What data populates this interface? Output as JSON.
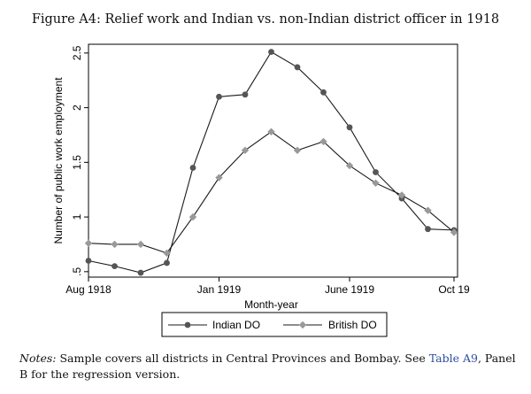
{
  "chart_data": {
    "type": "line",
    "title": "Figure A4: Relief work and Indian vs. non-Indian district officer in 1918",
    "xlabel": "Month-year",
    "ylabel": "Number of public work employment",
    "x": [
      "Aug 1918",
      "Sep 1918",
      "Oct 1918",
      "Nov 1918",
      "Dec 1918",
      "Jan 1919",
      "Feb 1919",
      "Mar 1919",
      "Apr 1919",
      "May 1919",
      "Jun 1919",
      "Jul 1919",
      "Aug 1919",
      "Sep 1919",
      "Oct 1919"
    ],
    "xticks": [
      {
        "index": 0,
        "label": "Aug 1918"
      },
      {
        "index": 5,
        "label": "Jan 1919"
      },
      {
        "index": 10,
        "label": "June 1919"
      },
      {
        "index": 14,
        "label": "Oct 19"
      }
    ],
    "ylim": [
      0.45,
      2.58
    ],
    "yticks": [
      ".5",
      "1",
      "1.5",
      "2",
      "2.5"
    ],
    "ytick_values": [
      0.5,
      1,
      1.5,
      2,
      2.5
    ],
    "grid": false,
    "legend_placement": "bottom",
    "series": [
      {
        "name": "Indian DO",
        "marker": "circle",
        "color": "#555555",
        "values": [
          0.6,
          0.55,
          0.49,
          0.58,
          1.45,
          2.1,
          2.12,
          2.51,
          2.37,
          2.14,
          1.82,
          1.41,
          1.17,
          0.89,
          0.88
        ]
      },
      {
        "name": "British DO",
        "marker": "diamond",
        "color": "#999999",
        "values": [
          0.76,
          0.75,
          0.75,
          0.67,
          1.0,
          1.36,
          1.61,
          1.78,
          1.61,
          1.69,
          1.47,
          1.31,
          1.2,
          1.06,
          0.86
        ]
      }
    ]
  },
  "notes": {
    "label": "Notes:",
    "text_before": " Sample covers all districts in Central Provinces and Bombay. See ",
    "link": "Table A9",
    "text_after": ", Panel B for the regression version."
  }
}
